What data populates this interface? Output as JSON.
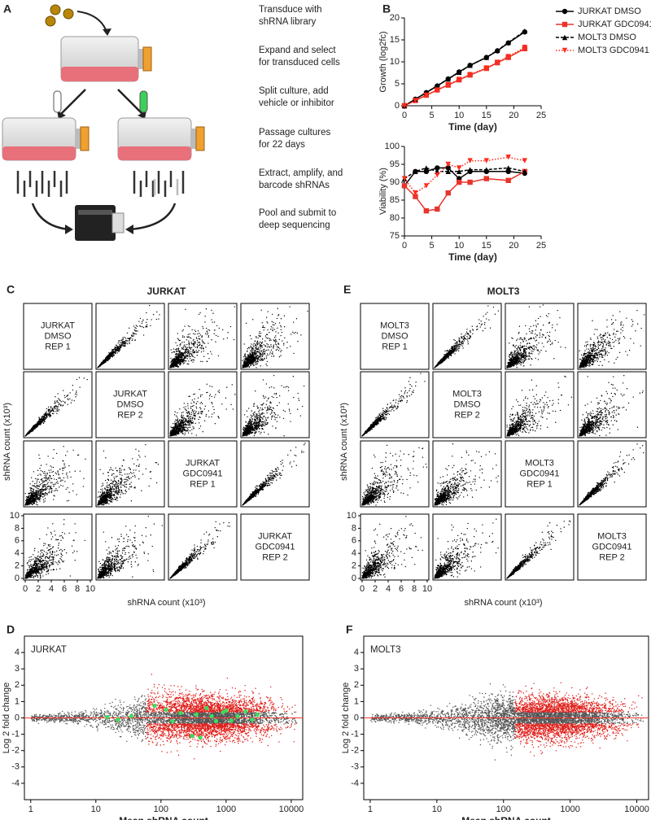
{
  "panel_labels": [
    "A",
    "B",
    "C",
    "D",
    "E",
    "F"
  ],
  "workflow_steps": [
    [
      "Transduce with",
      "shRNA library"
    ],
    [
      "Expand and select",
      "for transduced cells"
    ],
    [
      "Split culture, add",
      "vehicle or inhibitor"
    ],
    [
      "Passage cultures",
      "for 22 days"
    ],
    [
      "Extract, amplify, and",
      "barcode shRNAs"
    ],
    [
      "Pool and submit to",
      "deep sequencing"
    ]
  ],
  "chart_data": [
    {
      "type": "line",
      "xlabel": "Time (day)",
      "ylabel": "Growth (log2fc)",
      "x": [
        0,
        2,
        4,
        6,
        8,
        10,
        12,
        15,
        17,
        19,
        22
      ],
      "xlim": [
        0,
        25
      ],
      "xticks": [
        0,
        5,
        10,
        15,
        20,
        25
      ],
      "ylim": [
        0,
        20
      ],
      "yticks": [
        0,
        5,
        10,
        15,
        20
      ],
      "legend": "right",
      "series": [
        {
          "name": "JURKAT DMSO",
          "color": "#000000",
          "marker": "circle",
          "dash": "solid",
          "values": [
            0,
            1.5,
            3,
            4.5,
            6.1,
            7.7,
            9.2,
            11,
            12.5,
            14.3,
            16.8
          ]
        },
        {
          "name": "JURKAT GDC0941",
          "color": "#e8342a",
          "marker": "square",
          "dash": "solid",
          "values": [
            0,
            1.2,
            2.4,
            3.6,
            4.7,
            5.9,
            7,
            8.5,
            9.8,
            11,
            13
          ]
        },
        {
          "name": "MOLT3 DMSO",
          "color": "#000000",
          "marker": "triangle",
          "dash": "dash",
          "values": [
            0,
            1.5,
            3,
            4.6,
            6.1,
            7.6,
            9.2,
            11,
            12.6,
            14.4,
            17
          ]
        },
        {
          "name": "MOLT3 GDC0941",
          "color": "#ff2a1a",
          "marker": "triangle-down",
          "dash": "dot",
          "values": [
            0,
            1.2,
            2.4,
            3.6,
            4.8,
            6,
            7.1,
            8.6,
            9.9,
            11.2,
            13.3
          ]
        }
      ]
    },
    {
      "type": "line",
      "xlabel": "Time (day)",
      "ylabel": "Viability (%)",
      "x": [
        0,
        2,
        4,
        6,
        8,
        10,
        12,
        15,
        19,
        22
      ],
      "xlim": [
        0,
        25
      ],
      "xticks": [
        0,
        5,
        10,
        15,
        20,
        25
      ],
      "ylim": [
        75,
        100
      ],
      "yticks": [
        75,
        80,
        85,
        90,
        95,
        100
      ],
      "series": [
        {
          "color": "#000000",
          "marker": "circle",
          "dash": "solid",
          "values": [
            89,
            93,
            93,
            94,
            94,
            91,
            93,
            93,
            93,
            92.5
          ]
        },
        {
          "color": "#e8342a",
          "marker": "square",
          "dash": "solid",
          "values": [
            89,
            86,
            82,
            82.5,
            87,
            90,
            90,
            91,
            90.5,
            93
          ]
        },
        {
          "color": "#000000",
          "marker": "triangle",
          "dash": "dash",
          "values": [
            91,
            93,
            94,
            93,
            93,
            93,
            93.5,
            93.5,
            94,
            93
          ]
        },
        {
          "color": "#ff2a1a",
          "marker": "triangle-down",
          "dash": "dot",
          "values": [
            91,
            87,
            89,
            92,
            95,
            94,
            96,
            96,
            97,
            96
          ]
        }
      ]
    },
    {
      "type": "scatter_matrix",
      "title": "JURKAT",
      "xlabel": "shRNA count (x10³)",
      "ylabel": "shRNA count (x10³)",
      "xlim": [
        0,
        10
      ],
      "xticks": [
        0,
        2,
        4,
        6,
        8,
        10
      ],
      "ylim": [
        0,
        10
      ],
      "yticks": [
        0,
        2,
        4,
        6,
        8,
        10
      ],
      "diagonal_labels": [
        [
          "JURKAT",
          "DMSO",
          "REP 1"
        ],
        [
          "JURKAT",
          "DMSO",
          "REP 2"
        ],
        [
          "JURKAT",
          "GDC0941",
          "REP 1"
        ],
        [
          "JURKAT",
          "GDC0941",
          "REP 2"
        ]
      ]
    },
    {
      "type": "ma",
      "label": "JURKAT",
      "xlabel": "Mean shRNA count",
      "ylabel": "Log 2 fold change",
      "log_x": true,
      "xlim": [
        0.8,
        15000
      ],
      "xticks": [
        1,
        10,
        100,
        1000,
        10000
      ],
      "ylim": [
        -5,
        5
      ],
      "yticks": [
        -4,
        -3,
        -2,
        -1,
        0,
        1,
        2,
        3,
        4
      ],
      "reference_line": 0,
      "highlight": {
        "color": "#3ddc5a",
        "x": [
          15,
          22,
          35,
          80,
          120,
          150,
          200,
          300,
          350,
          400,
          500,
          600,
          700,
          900,
          1000,
          1200,
          1500,
          2000,
          2500,
          3000
        ],
        "y": [
          0.05,
          -0.1,
          0.1,
          0.75,
          0.5,
          -0.2,
          0.3,
          -1.1,
          0.2,
          -1.2,
          0.6,
          0.1,
          -0.2,
          0.35,
          0.45,
          -0.15,
          0.1,
          0.4,
          -0.1,
          0.2
        ]
      }
    },
    {
      "type": "scatter_matrix",
      "title": "MOLT3",
      "xlabel": "shRNA count (x10³)",
      "ylabel": "shRNA count (x10³)",
      "diagonal_labels": [
        [
          "MOLT3",
          "DMSO",
          "REP 1"
        ],
        [
          "MOLT3",
          "DMSO",
          "REP 2"
        ],
        [
          "MOLT3",
          "GDC0941",
          "REP 1"
        ],
        [
          "MOLT3",
          "GDC0941",
          "REP 2"
        ]
      ]
    },
    {
      "type": "ma",
      "label": "MOLT3",
      "xlabel": "Mean shRNA count",
      "ylabel": "Log 2 fold change",
      "log_x": true,
      "xlim": [
        0.8,
        15000
      ],
      "xticks": [
        1,
        10,
        100,
        1000,
        10000
      ],
      "ylim": [
        -5,
        5
      ],
      "yticks": [
        -4,
        -3,
        -2,
        -1,
        0,
        1,
        2,
        3,
        4
      ],
      "reference_line": 0
    }
  ]
}
